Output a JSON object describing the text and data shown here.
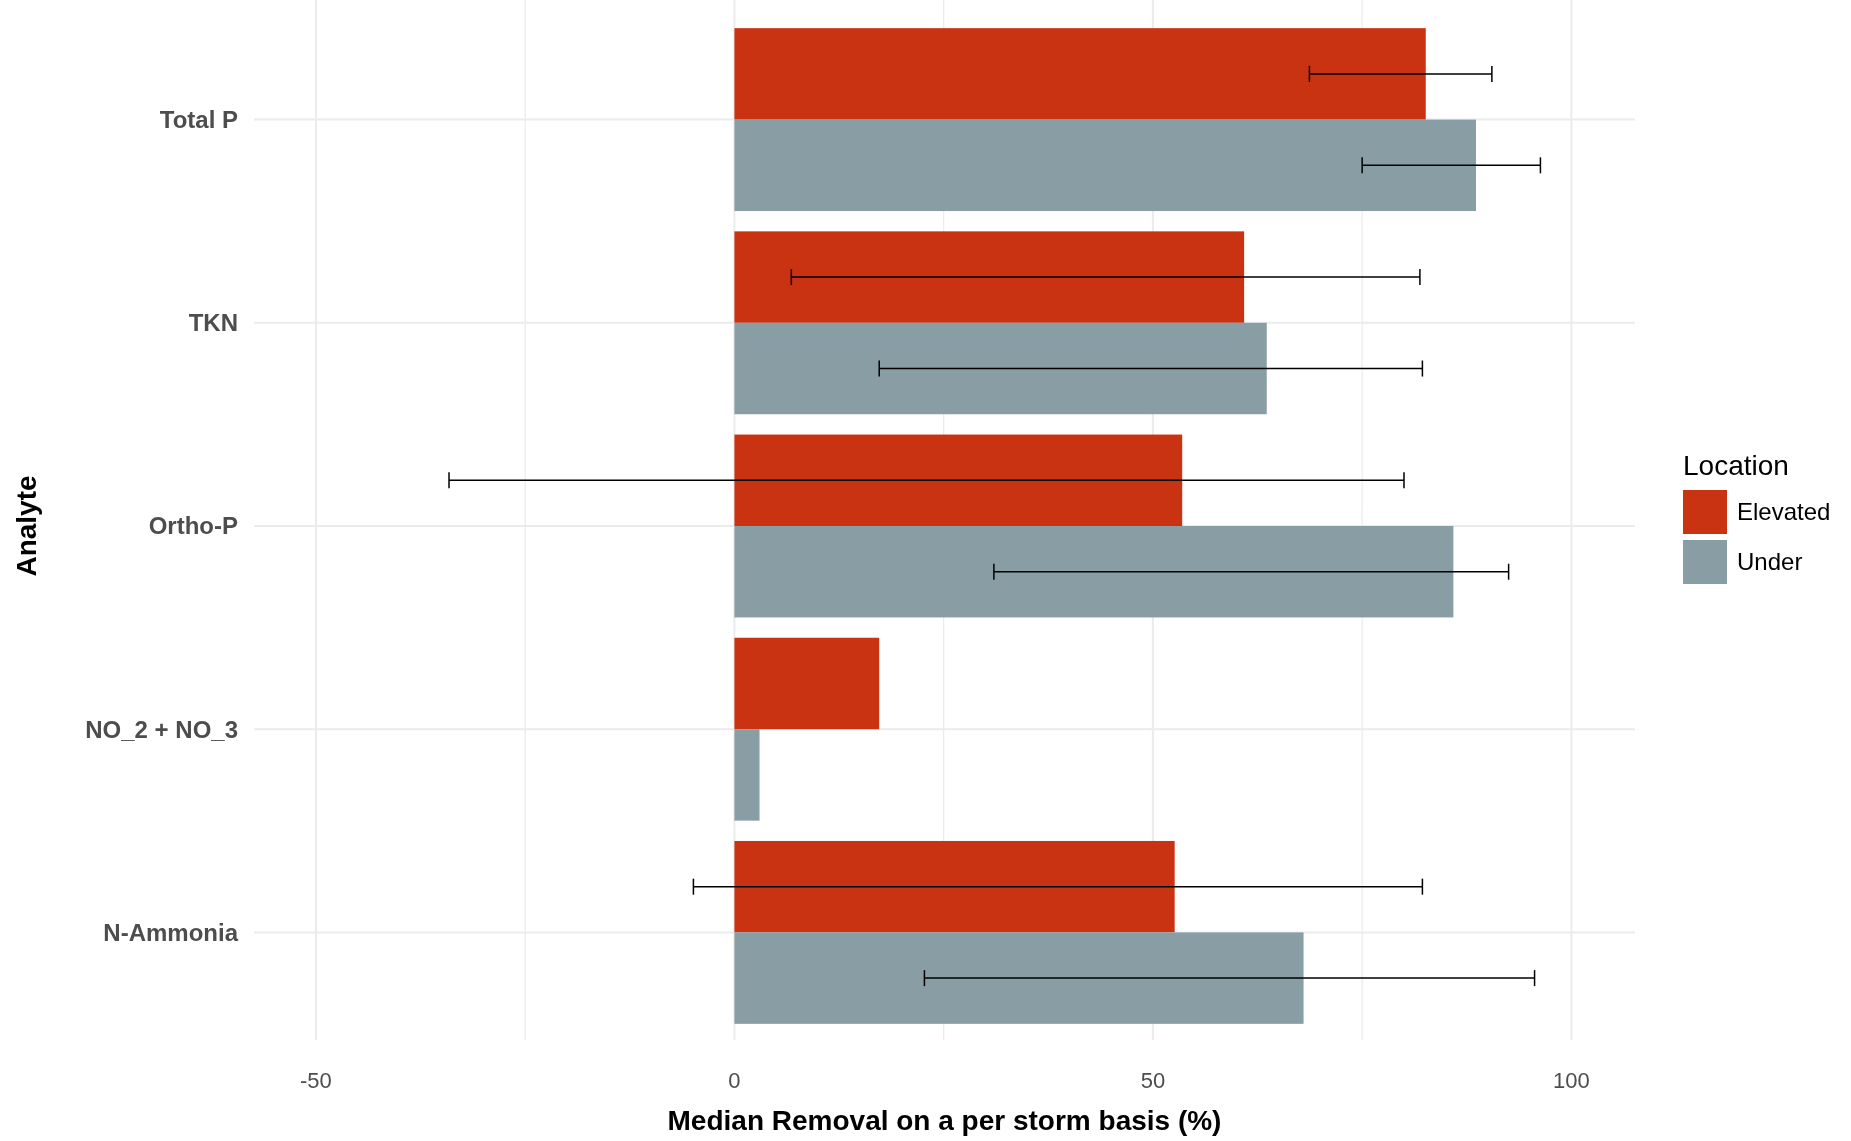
{
  "chart_data": {
    "type": "bar",
    "orientation": "horizontal",
    "xlabel": "Median Removal on a per storm basis (%)",
    "ylabel": "Analyte",
    "legend_title": "Location",
    "legend": "right",
    "categories": [
      "Total P",
      "TKN",
      "Ortho-P",
      "NO_2 + NO_3",
      "N-Ammonia"
    ],
    "series": [
      {
        "name": "Elevated",
        "color": "#c93312",
        "values": [
          82.6,
          60.9,
          53.5,
          17.3,
          52.6
        ],
        "errors": [
          [
            68.7,
            90.5
          ],
          [
            6.8,
            81.9
          ],
          [
            -34.1,
            80.0
          ],
          null,
          [
            -4.9,
            82.2
          ]
        ]
      },
      {
        "name": "Under",
        "color": "#899da4",
        "values": [
          88.6,
          63.6,
          85.9,
          3.0,
          68.0
        ],
        "errors": [
          [
            75.0,
            96.3
          ],
          [
            17.3,
            82.2
          ],
          [
            31.0,
            92.5
          ],
          null,
          [
            22.7,
            95.6
          ]
        ]
      }
    ],
    "xlim": [
      -57.4,
      107.6
    ],
    "xticks": [
      -50,
      {
        "value": -25,
        "label": null
      },
      0,
      {
        "value": 25,
        "label": null
      },
      50,
      {
        "value": 75,
        "label": null
      },
      100
    ],
    "grid": true
  }
}
